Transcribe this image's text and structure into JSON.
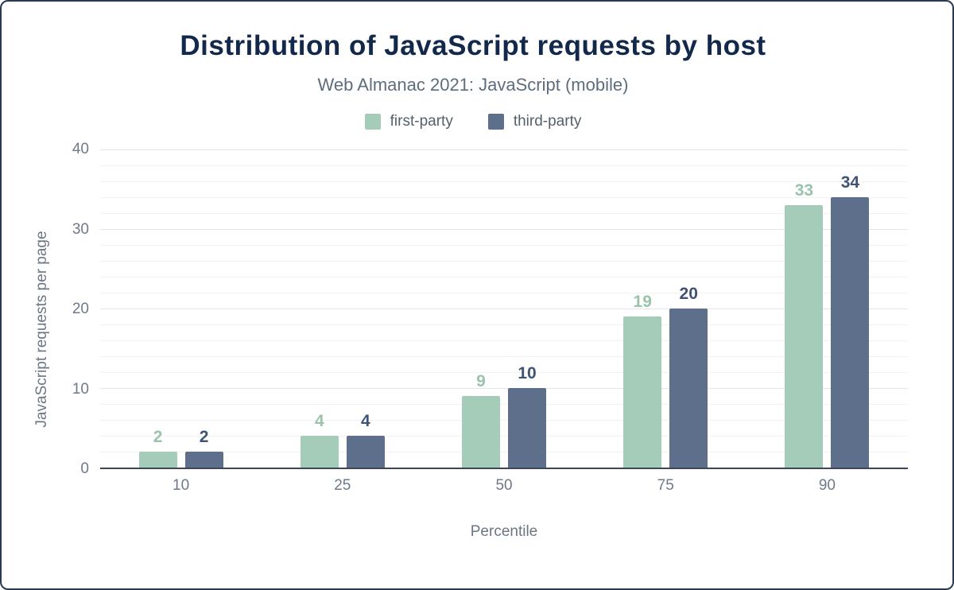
{
  "title": "Distribution of JavaScript requests by host",
  "subtitle": "Web Almanac 2021: JavaScript (mobile)",
  "chart_data": {
    "type": "bar",
    "title": "Distribution of JavaScript requests by host",
    "subtitle": "Web Almanac 2021: JavaScript (mobile)",
    "categories": [
      "10",
      "25",
      "50",
      "75",
      "90"
    ],
    "series": [
      {
        "name": "first-party",
        "color": "#a5ccb8",
        "label_color": "#9ac3ac",
        "values": [
          2,
          4,
          9,
          19,
          33
        ]
      },
      {
        "name": "third-party",
        "color": "#5d6f8b",
        "label_color": "#3f5375",
        "values": [
          2,
          4,
          10,
          20,
          34
        ]
      }
    ],
    "xlabel": "Percentile",
    "ylabel": "JavaScript requests per page",
    "ylim": [
      0,
      40
    ],
    "yticks": [
      0,
      10,
      20,
      30,
      40
    ],
    "minor_grid_step": 2,
    "grid": true,
    "legend_position": "top"
  }
}
